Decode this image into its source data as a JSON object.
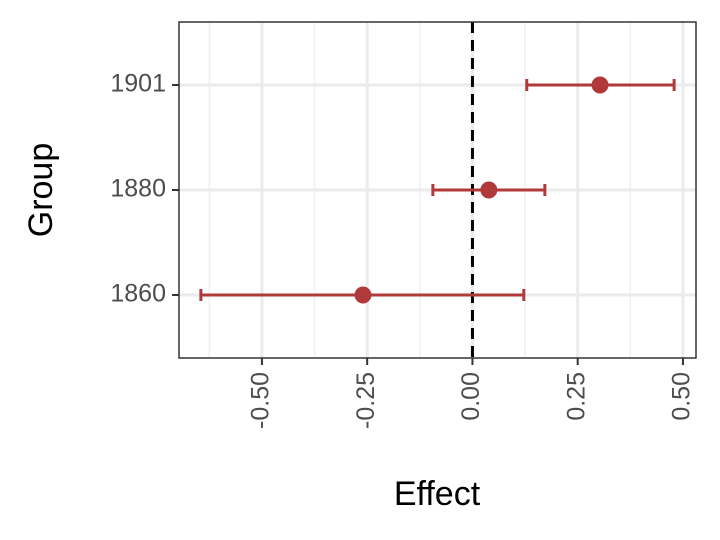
{
  "chart_data": {
    "type": "forest",
    "x_label": "Effect",
    "y_label": "Group",
    "categories": [
      "1860",
      "1880",
      "1901"
    ],
    "series": [
      {
        "color": "#b03a3a",
        "values": [
          -0.26,
          0.039,
          0.303
        ],
        "lower": [
          -0.645,
          -0.094,
          0.129
        ],
        "upper": [
          0.122,
          0.172,
          0.479
        ]
      }
    ],
    "xlim": [
      -0.697,
      0.531
    ],
    "xticks": [
      {
        "value": -0.5,
        "label": "-0.50"
      },
      {
        "value": -0.25,
        "label": "-0.25"
      },
      {
        "value": 0,
        "label": "0.00"
      },
      {
        "value": 0.25,
        "label": "0.25"
      },
      {
        "value": 0.5,
        "label": "0.50"
      }
    ],
    "vline": 0,
    "grid": true
  }
}
